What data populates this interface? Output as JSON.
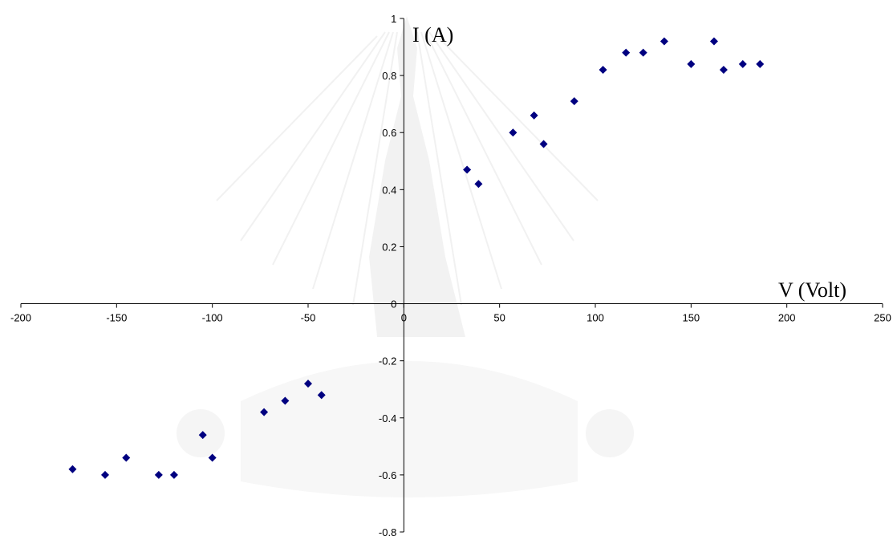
{
  "chart_data": {
    "type": "scatter",
    "title": "",
    "xlabel": "V (Volt)",
    "ylabel": "I (A)",
    "xlim": [
      -200,
      250
    ],
    "ylim": [
      -0.8,
      1
    ],
    "x_ticks": [
      -200,
      -150,
      -100,
      -50,
      0,
      50,
      100,
      150,
      200,
      250
    ],
    "y_ticks": [
      -0.8,
      -0.6,
      -0.4,
      -0.2,
      0,
      0.2,
      0.4,
      0.6,
      0.8,
      1
    ],
    "grid": false,
    "legend": "none",
    "marker": "diamond",
    "colors": {
      "marker": "#000080",
      "axis": "#000000"
    },
    "series": [
      {
        "points": [
          {
            "x": -173,
            "y": -0.58
          },
          {
            "x": -156,
            "y": -0.6
          },
          {
            "x": -145,
            "y": -0.54
          },
          {
            "x": -128,
            "y": -0.6
          },
          {
            "x": -120,
            "y": -0.6
          },
          {
            "x": -105,
            "y": -0.46
          },
          {
            "x": -100,
            "y": -0.54
          },
          {
            "x": -73,
            "y": -0.38
          },
          {
            "x": -62,
            "y": -0.34
          },
          {
            "x": -50,
            "y": -0.28
          },
          {
            "x": -43,
            "y": -0.32
          },
          {
            "x": 33,
            "y": 0.47
          },
          {
            "x": 39,
            "y": 0.42
          },
          {
            "x": 57,
            "y": 0.6
          },
          {
            "x": 68,
            "y": 0.66
          },
          {
            "x": 73,
            "y": 0.56
          },
          {
            "x": 89,
            "y": 0.71
          },
          {
            "x": 104,
            "y": 0.82
          },
          {
            "x": 116,
            "y": 0.88
          },
          {
            "x": 125,
            "y": 0.88
          },
          {
            "x": 136,
            "y": 0.92
          },
          {
            "x": 150,
            "y": 0.84
          },
          {
            "x": 162,
            "y": 0.92
          },
          {
            "x": 167,
            "y": 0.82
          },
          {
            "x": 177,
            "y": 0.84
          },
          {
            "x": 186,
            "y": 0.84
          }
        ]
      }
    ]
  }
}
